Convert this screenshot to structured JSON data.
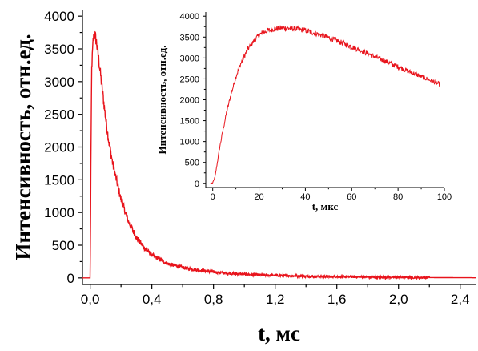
{
  "chart_data": [
    {
      "type": "line",
      "title": "",
      "xlabel": "t, мс",
      "ylabel": "Интенсивность, отн.ед.",
      "xlim": [
        -0.05,
        2.5
      ],
      "ylim": [
        -100,
        4100
      ],
      "x_ticks": [
        0.0,
        0.4,
        0.8,
        1.2,
        1.6,
        2.0,
        2.4
      ],
      "x_tick_labels": [
        "0,0",
        "0,4",
        "0,8",
        "1,2",
        "1,6",
        "2,0",
        "2,4"
      ],
      "y_ticks": [
        0,
        500,
        1000,
        1500,
        2000,
        2500,
        3000,
        3500,
        4000
      ],
      "y_tick_labels": [
        "0",
        "500",
        "1000",
        "1500",
        "2000",
        "2500",
        "3000",
        "3500",
        "4000"
      ],
      "grid": false,
      "color": "#e8141c",
      "series": [
        {
          "x": [
            -0.05,
            0.0,
            0.005,
            0.01,
            0.02,
            0.03,
            0.04,
            0.05,
            0.06,
            0.08,
            0.1,
            0.12,
            0.15,
            0.2,
            0.25,
            0.3,
            0.35,
            0.4,
            0.5,
            0.6,
            0.7,
            0.8,
            0.9,
            1.0,
            1.2,
            1.4,
            1.6,
            1.8,
            2.0,
            2.2,
            2.4,
            2.5
          ],
          "y": [
            0,
            0,
            1800,
            3200,
            3650,
            3720,
            3620,
            3450,
            3260,
            2850,
            2450,
            2100,
            1700,
            1200,
            850,
            620,
            460,
            350,
            220,
            160,
            120,
            90,
            70,
            55,
            38,
            25,
            18,
            12,
            8,
            5,
            3,
            2
          ]
        }
      ]
    },
    {
      "type": "line",
      "title": "",
      "xlabel": "t, мкс",
      "ylabel": "Интенсивность, отн.ед.",
      "xlim": [
        -3,
        100
      ],
      "ylim": [
        -100,
        4100
      ],
      "x_ticks": [
        0,
        20,
        40,
        60,
        80,
        100
      ],
      "x_tick_labels": [
        "0",
        "20",
        "40",
        "60",
        "80",
        "100"
      ],
      "y_ticks": [
        0,
        500,
        1000,
        1500,
        2000,
        2500,
        3000,
        3500,
        4000
      ],
      "y_tick_labels": [
        "0",
        "500",
        "1000",
        "1500",
        "2000",
        "2500",
        "3000",
        "3500",
        "4000"
      ],
      "grid": false,
      "color": "#e8141c",
      "series": [
        {
          "x": [
            -1,
            0,
            1,
            2,
            3,
            4,
            6,
            8,
            10,
            12,
            15,
            18,
            20,
            23,
            26,
            30,
            35,
            40,
            45,
            50,
            55,
            60,
            65,
            70,
            75,
            80,
            85,
            90,
            95,
            98
          ],
          "y": [
            0,
            10,
            150,
            500,
            850,
            1150,
            1700,
            2150,
            2550,
            2850,
            3200,
            3420,
            3550,
            3640,
            3690,
            3720,
            3700,
            3660,
            3580,
            3490,
            3380,
            3270,
            3150,
            3030,
            2910,
            2790,
            2670,
            2560,
            2440,
            2370
          ]
        }
      ]
    }
  ]
}
